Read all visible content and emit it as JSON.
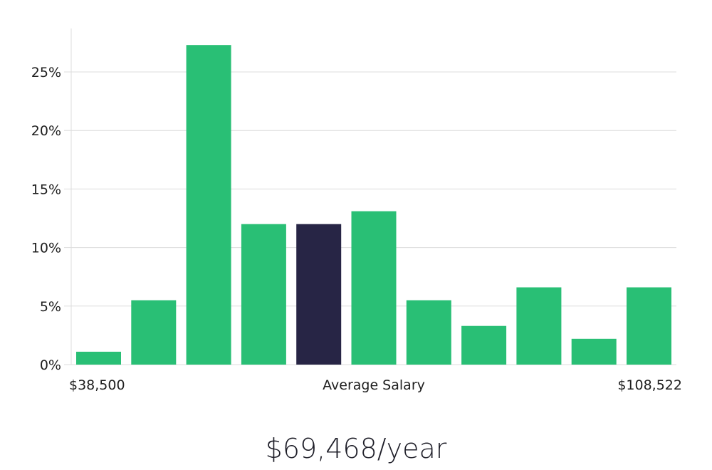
{
  "chart_data": {
    "type": "bar",
    "categories": [
      "1",
      "2",
      "3",
      "4",
      "5",
      "6",
      "7",
      "8",
      "9",
      "10",
      "11"
    ],
    "values": [
      1.1,
      5.5,
      27.3,
      12.0,
      12.0,
      13.1,
      5.5,
      3.3,
      6.6,
      2.2,
      6.6
    ],
    "highlight_index": 4,
    "ylim": [
      0,
      28
    ],
    "yticks": [
      0,
      5,
      10,
      15,
      20,
      25
    ],
    "ytick_labels": [
      "0%",
      "5%",
      "10%",
      "15%",
      "20%",
      "25%"
    ],
    "x_labels": {
      "min": "$38,500",
      "center": "Average Salary",
      "max": "$108,522"
    },
    "grid": true,
    "colors": {
      "bar": "#29bf75",
      "highlight": "#272545",
      "grid": "#dcdcdc",
      "axis": "#dcdcdc"
    }
  },
  "salary_summary": "$69,468/year"
}
